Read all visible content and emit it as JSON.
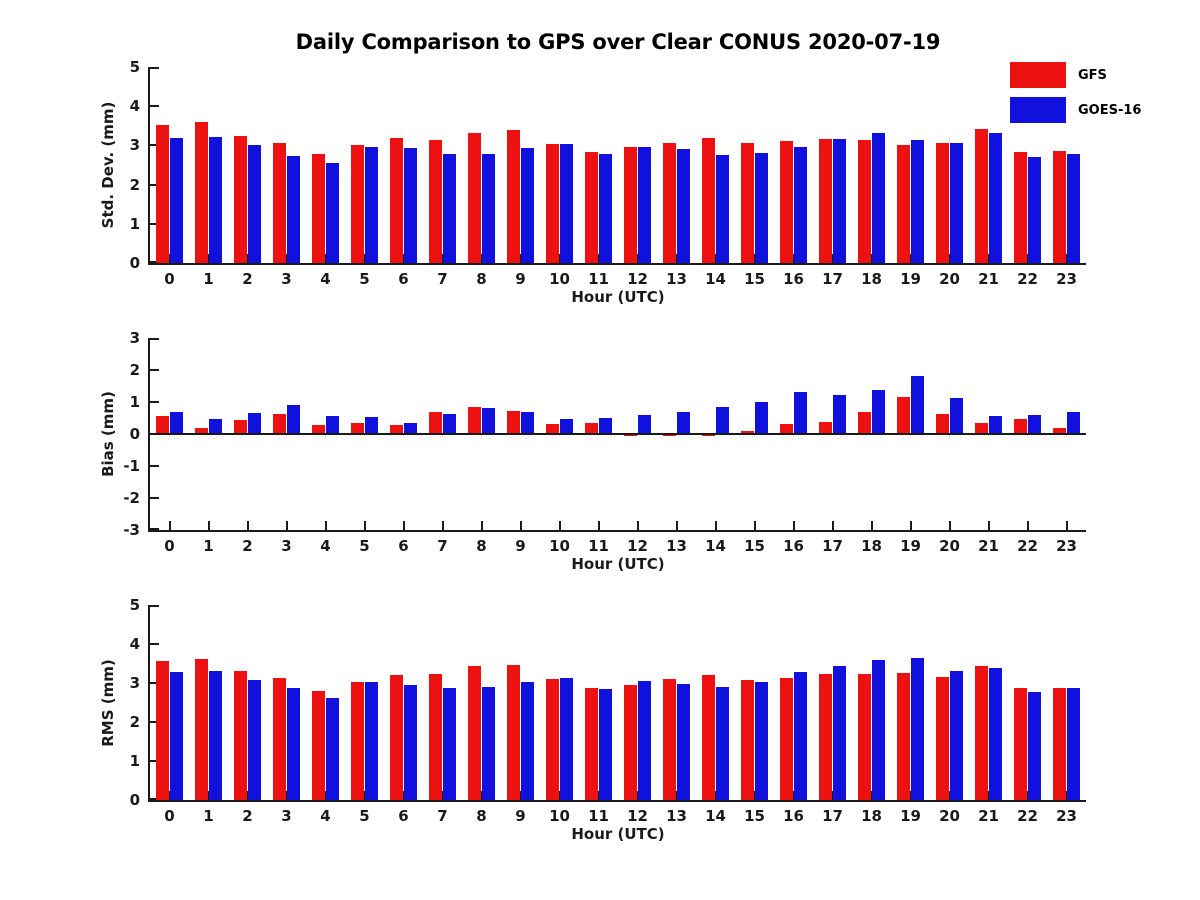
{
  "title": "Daily Comparison to GPS over Clear CONUS 2020-07-19",
  "legend": [
    {
      "label": "GFS",
      "color": "#ee1111"
    },
    {
      "label": "GOES-16",
      "color": "#1111dd"
    }
  ],
  "xlabel": "Hour (UTC)",
  "chart_data": [
    {
      "type": "bar",
      "ylabel": "Std. Dev. (mm)",
      "xlabel": "Hour (UTC)",
      "ylim": [
        0,
        5
      ],
      "yticks": [
        0,
        1,
        2,
        3,
        4,
        5
      ],
      "grid": false,
      "legend_position": "upper-right-outside",
      "categories": [
        "0",
        "1",
        "2",
        "3",
        "4",
        "5",
        "6",
        "7",
        "8",
        "9",
        "10",
        "11",
        "12",
        "13",
        "14",
        "15",
        "16",
        "17",
        "18",
        "19",
        "20",
        "21",
        "22",
        "23"
      ],
      "series": [
        {
          "name": "GFS",
          "color": "#ee1111",
          "values": [
            3.52,
            3.59,
            3.24,
            3.05,
            2.77,
            3.01,
            3.18,
            3.13,
            3.31,
            3.4,
            3.04,
            2.84,
            2.95,
            3.07,
            3.2,
            3.05,
            3.1,
            3.17,
            3.13,
            3.0,
            3.07,
            3.41,
            2.82,
            2.85
          ]
        },
        {
          "name": "GOES-16",
          "color": "#1111dd",
          "values": [
            3.2,
            3.22,
            3.0,
            2.74,
            2.55,
            2.95,
            2.93,
            2.78,
            2.78,
            2.93,
            3.04,
            2.78,
            2.95,
            2.9,
            2.76,
            2.8,
            2.96,
            3.17,
            3.31,
            3.13,
            3.06,
            3.31,
            2.71,
            2.77
          ]
        }
      ]
    },
    {
      "type": "bar",
      "ylabel": "Bias (mm)",
      "xlabel": "Hour (UTC)",
      "ylim": [
        -3,
        3
      ],
      "yticks": [
        -3,
        -2,
        -1,
        0,
        1,
        2,
        3
      ],
      "grid": false,
      "categories": [
        "0",
        "1",
        "2",
        "3",
        "4",
        "5",
        "6",
        "7",
        "8",
        "9",
        "10",
        "11",
        "12",
        "13",
        "14",
        "15",
        "16",
        "17",
        "18",
        "19",
        "20",
        "21",
        "22",
        "23"
      ],
      "series": [
        {
          "name": "GFS",
          "color": "#ee1111",
          "values": [
            0.55,
            0.2,
            0.45,
            0.63,
            0.29,
            0.33,
            0.27,
            0.69,
            0.85,
            0.73,
            0.32,
            0.35,
            -0.03,
            -0.05,
            -0.03,
            0.08,
            0.32,
            0.36,
            0.68,
            1.15,
            0.63,
            0.33,
            0.48,
            0.2
          ]
        },
        {
          "name": "GOES-16",
          "color": "#1111dd",
          "values": [
            0.7,
            0.46,
            0.67,
            0.91,
            0.55,
            0.52,
            0.35,
            0.64,
            0.81,
            0.7,
            0.46,
            0.5,
            0.58,
            0.68,
            0.85,
            1.0,
            1.3,
            1.22,
            1.38,
            1.82,
            1.13,
            0.55,
            0.6,
            0.68
          ]
        }
      ]
    },
    {
      "type": "bar",
      "ylabel": "RMS (mm)",
      "xlabel": "Hour (UTC)",
      "ylim": [
        0,
        5
      ],
      "yticks": [
        0,
        1,
        2,
        3,
        4,
        5
      ],
      "grid": false,
      "categories": [
        "0",
        "1",
        "2",
        "3",
        "4",
        "5",
        "6",
        "7",
        "8",
        "9",
        "10",
        "11",
        "12",
        "13",
        "14",
        "15",
        "16",
        "17",
        "18",
        "19",
        "20",
        "21",
        "22",
        "23"
      ],
      "series": [
        {
          "name": "GFS",
          "color": "#ee1111",
          "values": [
            3.56,
            3.61,
            3.32,
            3.14,
            2.79,
            3.02,
            3.2,
            3.22,
            3.44,
            3.47,
            3.11,
            2.87,
            2.95,
            3.09,
            3.21,
            3.08,
            3.14,
            3.22,
            3.22,
            3.25,
            3.16,
            3.44,
            2.88,
            2.86
          ]
        },
        {
          "name": "GOES-16",
          "color": "#1111dd",
          "values": [
            3.29,
            3.31,
            3.08,
            2.88,
            2.62,
            3.02,
            2.96,
            2.87,
            2.9,
            3.02,
            3.13,
            2.84,
            3.04,
            2.98,
            2.9,
            3.02,
            3.27,
            3.43,
            3.58,
            3.63,
            3.3,
            3.38,
            2.77,
            2.88
          ]
        }
      ]
    }
  ]
}
